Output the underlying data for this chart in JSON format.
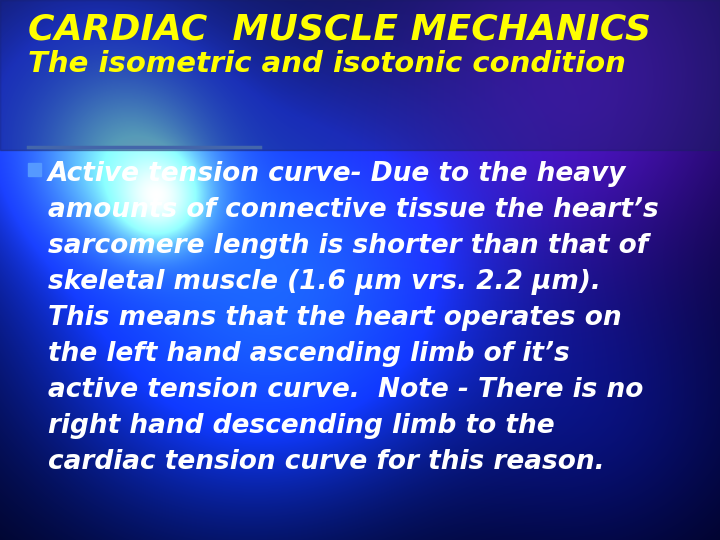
{
  "title_line1": "CARDIAC  MUSCLE MECHANICS",
  "title_line2": "The isometric and isotonic condition",
  "title_color": "#FFFF00",
  "body_text_color": "#FFFFFF",
  "bullet_color": "#5599FF",
  "divider_color": "#4466AA",
  "title_fontsize": 26,
  "subtitle_fontsize": 21,
  "body_fontsize": 19,
  "body_lines": [
    "Active tension curve- Due to the heavy",
    "amounts of connective tissue the heart’s",
    "sarcomere length is shorter than that of",
    "skeletal muscle (1.6 μm vrs. 2.2 μm).",
    "This means that the heart operates on",
    "the left hand ascending limb of it’s",
    "active tension curve.  Note - There is no",
    "right hand descending limb to the",
    "cardiac tension curve for this reason."
  ]
}
